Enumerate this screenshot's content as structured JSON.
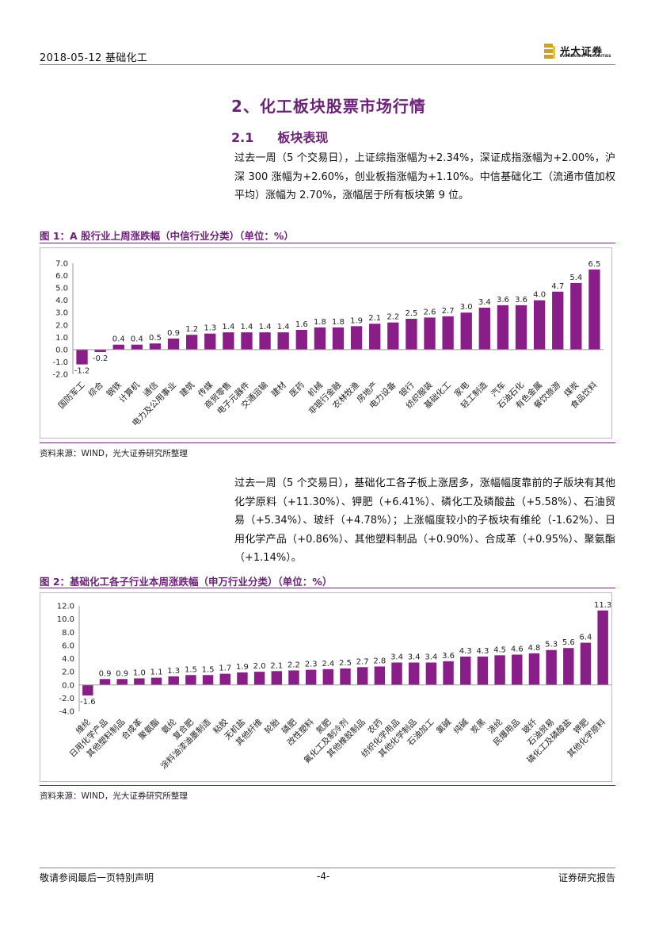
{
  "header": {
    "date_section": "2018-05-12    基础化工",
    "logo_cn": "光大证券",
    "logo_en": "EVERBRIGHT SECURITIES"
  },
  "section_title": "2、化工板块股票市场行情",
  "subsection": {
    "number": "2.1",
    "title": "板块表现"
  },
  "paragraph1": "过去一周（5 个交易日），上证综指涨幅为+2.34%，深证成指涨幅为+2.00%，沪深 300 涨幅为+2.60%，创业板指涨幅为+1.10%。中信基础化工（流通市值加权平均）涨幅为 2.70%，涨幅居于所有板块第 9 位。",
  "paragraph2": "过去一周（5 个交易日），基础化工各子板上涨居多，涨幅幅度靠前的子版块有其他化学原料（+11.30%）、钾肥（+6.41%）、磷化工及磷酸盐（+5.58%）、石油贸易（+5.34%）、玻纤（+4.78%）；上涨幅度较小的子板块有维纶（-1.62%）、日用化学产品（+0.86%）、其他塑料制品（+0.90%）、合成革（+0.95%）、聚氨酯（+1.14%）。",
  "figure1": {
    "title": "图 1：A 股行业上周涨跌幅（中信行业分类）（单位：%）",
    "source": "资料来源：WIND，光大证券研究所整理"
  },
  "figure2": {
    "title": "图 2：基础化工各子行业本周涨跌幅（申万行业分类）（单位：%）",
    "source": "资料来源：WIND，光大证券研究所整理"
  },
  "colors": {
    "accent": "#6b2277",
    "bar": "#8a1e88"
  },
  "chart_data": [
    {
      "type": "bar",
      "title": "A 股行业上周涨跌幅（中信行业分类）（单位：%）",
      "categories": [
        "国防军工",
        "综合",
        "钢铁",
        "计算机",
        "通信",
        "电力及公用事业",
        "建筑",
        "传媒",
        "商贸零售",
        "电子元器件",
        "交通运输",
        "建材",
        "医药",
        "机械",
        "非银行金融",
        "农林牧渔",
        "房地产",
        "电力设备",
        "银行",
        "纺织服装",
        "基础化工",
        "家电",
        "轻工制造",
        "汽车",
        "石油石化",
        "有色金属",
        "餐饮旅游",
        "煤炭",
        "食品饮料"
      ],
      "values": [
        -1.2,
        -0.2,
        0.4,
        0.4,
        0.5,
        0.9,
        1.2,
        1.3,
        1.4,
        1.4,
        1.4,
        1.4,
        1.6,
        1.8,
        1.8,
        1.9,
        2.1,
        2.2,
        2.5,
        2.6,
        2.7,
        3.0,
        3.4,
        3.6,
        3.6,
        4.0,
        4.7,
        5.4,
        6.5
      ],
      "labels": [
        "-1.2",
        "-0.2",
        "0.4",
        "0.4",
        "0.5",
        "0.9",
        "1.2",
        "1.3",
        "1.4",
        "1.4",
        "1.4",
        "1.4",
        "1.6",
        "1.8",
        "1.8",
        "1.9",
        "2.1",
        "2.2",
        "2.5",
        "2.6",
        "2.7",
        "3.0",
        "3.4",
        "3.6",
        "3.6",
        "4.0",
        "4.7",
        "5.4",
        "6.5"
      ],
      "ylim": [
        -2.0,
        7.0
      ],
      "yticks": [
        "7.0",
        "6.0",
        "5.0",
        "4.0",
        "3.0",
        "2.0",
        "1.0",
        "0.0",
        "-1.0",
        "-2.0"
      ],
      "ytick_values": [
        7,
        6,
        5,
        4,
        3,
        2,
        1,
        0,
        -1,
        -2
      ]
    },
    {
      "type": "bar",
      "title": "基础化工各子行业本周涨跌幅（申万行业分类）（单位：%）",
      "categories": [
        "维纶",
        "日用化学产品",
        "其他塑料制品",
        "合成革",
        "聚氨酯",
        "氨纶",
        "复合肥",
        "涂料油漆油墨制造",
        "粘胶",
        "无机盐",
        "其他纤维",
        "轮胎",
        "磷肥",
        "改性塑料",
        "氮肥",
        "氟化工及制冷剂",
        "其他橡胶制品",
        "农药",
        "纺织化学用品",
        "其他化学制品",
        "石油加工",
        "氯碱",
        "纯碱",
        "炭黑",
        "涤纶",
        "民爆用品",
        "玻纤",
        "石油贸易",
        "磷化工及磷酸盐",
        "钾肥",
        "其他化学原料"
      ],
      "values": [
        -1.6,
        0.9,
        0.9,
        1.0,
        1.1,
        1.3,
        1.5,
        1.5,
        1.7,
        1.9,
        2.0,
        2.1,
        2.2,
        2.3,
        2.4,
        2.5,
        2.7,
        2.8,
        3.4,
        3.4,
        3.4,
        3.6,
        4.3,
        4.3,
        4.5,
        4.6,
        4.8,
        5.3,
        5.6,
        6.4,
        11.3
      ],
      "labels": [
        "-1.6",
        "0.9",
        "0.9",
        "1.0",
        "1.1",
        "1.3",
        "1.5",
        "1.5",
        "1.7",
        "1.9",
        "2.0",
        "2.1",
        "2.2",
        "2.3",
        "2.4",
        "2.5",
        "2.7",
        "2.8",
        "3.4",
        "3.4",
        "3.4",
        "3.6",
        "4.3",
        "4.3",
        "4.5",
        "4.6",
        "4.8",
        "5.3",
        "5.6",
        "6.4",
        "11.3"
      ],
      "ylim": [
        -4.0,
        12.0
      ],
      "yticks": [
        "12.0",
        "10.0",
        "8.0",
        "6.0",
        "4.0",
        "2.0",
        "0.0",
        "-2.0",
        "-4.0"
      ],
      "ytick_values": [
        12,
        10,
        8,
        6,
        4,
        2,
        0,
        -2,
        -4
      ]
    }
  ],
  "footer": {
    "left": "敬请参阅最后一页特别声明",
    "center": "-4-",
    "right": "证券研究报告"
  }
}
